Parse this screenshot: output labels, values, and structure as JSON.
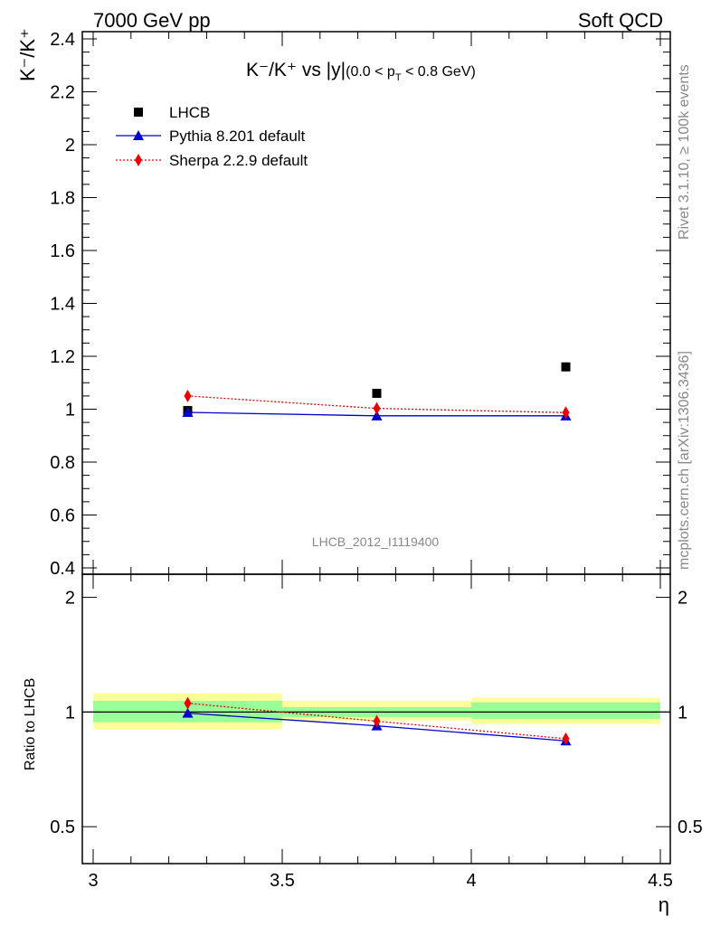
{
  "header": {
    "left": "7000 GeV pp",
    "right": "Soft QCD"
  },
  "side": {
    "rivet": "Rivet 3.1.10, ≥ 100k events",
    "mcplots": "mcplots.cern.ch [arXiv:1306.3436]"
  },
  "plot": {
    "title_main": "K⁻/K⁺ vs |y|",
    "title_cut": "(0.0 < p",
    "title_cut_sub": "T",
    "title_cut_end": " < 0.8 GeV)",
    "ylabel": "K⁻/K⁺",
    "ratio_ylabel": "Ratio to LHCB",
    "xlabel": "η",
    "watermark": "LHCB_2012_I1119400"
  },
  "colors": {
    "data": "#000000",
    "pythia": "#0000cc",
    "sherpa": "#ee0000",
    "band_inner": "#99ff99",
    "band_outer": "#ffff99"
  },
  "chart_data": {
    "type": "scatter",
    "xlim": [
      3.0,
      4.5
    ],
    "ylim": [
      0.4,
      2.4
    ],
    "ratio_ylim": [
      0.4,
      2.3
    ],
    "ratio_log": true,
    "x_ticks": [
      "3",
      "3.5",
      "4",
      "4.5"
    ],
    "x_tick_values": [
      3.0,
      3.5,
      4.0,
      4.5
    ],
    "y_ticks": [
      "0.4",
      "0.6",
      "0.8",
      "1",
      "1.2",
      "1.4",
      "1.6",
      "1.8",
      "2",
      "2.2",
      "2.4"
    ],
    "y_tick_values": [
      0.4,
      0.6,
      0.8,
      1.0,
      1.2,
      1.4,
      1.6,
      1.8,
      2.0,
      2.2,
      2.4
    ],
    "ratio_ticks": [
      "0.5",
      "1",
      "2"
    ],
    "ratio_tick_values": [
      0.5,
      1.0,
      2.0
    ],
    "bins": [
      [
        3.0,
        3.5
      ],
      [
        3.5,
        4.0
      ],
      [
        4.0,
        4.5
      ]
    ],
    "band_inner": [
      [
        0.94,
        1.07
      ],
      [
        0.97,
        1.03
      ],
      [
        0.96,
        1.06
      ]
    ],
    "band_outer": [
      [
        0.9,
        1.12
      ],
      [
        0.95,
        1.07
      ],
      [
        0.93,
        1.09
      ]
    ],
    "legend_position": "top-left",
    "series": [
      {
        "name": "LHCB",
        "marker": "square",
        "x": [
          3.25,
          3.75,
          4.25
        ],
        "y": [
          0.995,
          1.06,
          1.16
        ],
        "err": [
          0.01,
          0.01,
          0.01
        ]
      },
      {
        "name": "Pythia 8.201 default",
        "marker": "triangle",
        "x": [
          3.25,
          3.75,
          4.25
        ],
        "y": [
          0.988,
          0.975,
          0.975
        ],
        "err": [
          0.01,
          0.008,
          0.008
        ],
        "ratio": [
          0.993,
          0.92,
          0.84
        ]
      },
      {
        "name": "Sherpa 2.2.9 default",
        "marker": "diamond",
        "x": [
          3.25,
          3.75,
          4.25
        ],
        "y": [
          1.05,
          1.003,
          0.987
        ],
        "err": [
          0.02,
          0.015,
          0.015
        ],
        "ratio": [
          1.055,
          0.946,
          0.851
        ]
      }
    ]
  }
}
